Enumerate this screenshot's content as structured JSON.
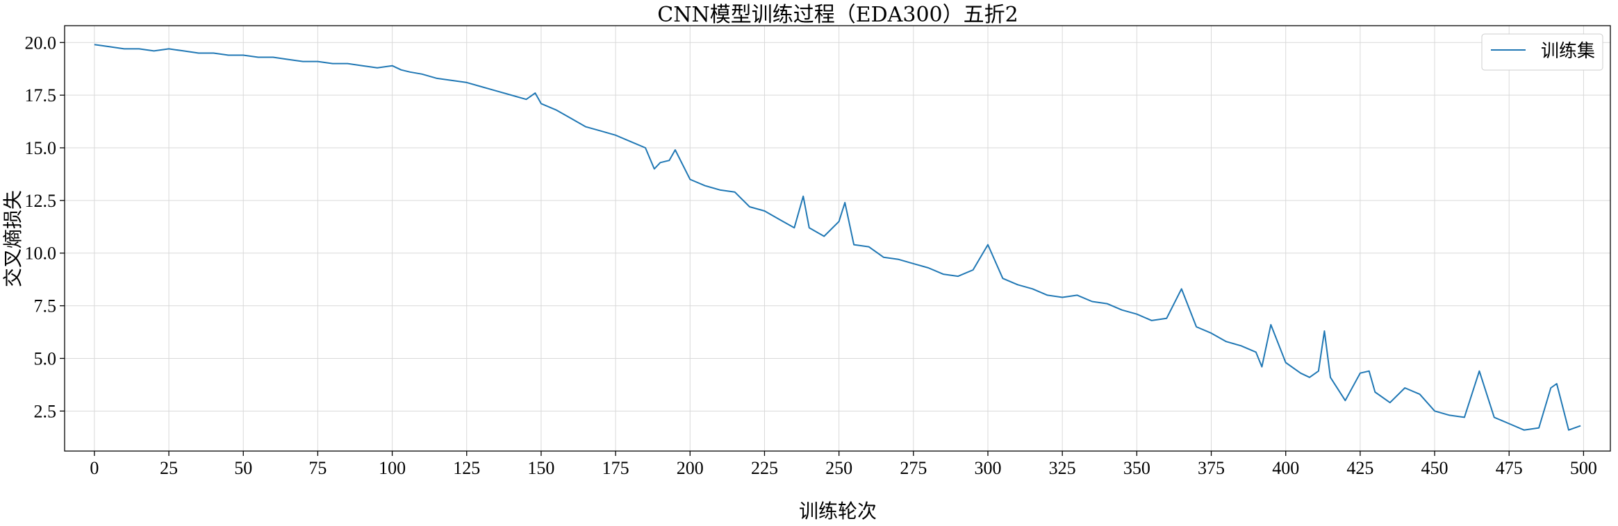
{
  "chart_data": {
    "type": "line",
    "title": "CNN模型训练过程（EDA300）五折2",
    "xlabel": "训练轮次",
    "ylabel": "交叉熵损失",
    "xlim": [
      -10,
      509
    ],
    "ylim": [
      0.6,
      20.8
    ],
    "x_ticks": [
      0,
      25,
      50,
      75,
      100,
      125,
      150,
      175,
      200,
      225,
      250,
      275,
      300,
      325,
      350,
      375,
      400,
      425,
      450,
      475,
      500
    ],
    "y_ticks": [
      2.5,
      5.0,
      7.5,
      10.0,
      12.5,
      15.0,
      17.5,
      20.0
    ],
    "y_tick_labels": [
      "2.5",
      "5.0",
      "7.5",
      "10.0",
      "12.5",
      "15.0",
      "17.5",
      "20.0"
    ],
    "grid": true,
    "legend_position": "top-right",
    "colors": {
      "series": "#1f77b4",
      "grid": "#d9d9d9",
      "axis": "#000000"
    },
    "series": [
      {
        "name": "训练集",
        "x": [
          0,
          5,
          10,
          15,
          20,
          25,
          30,
          35,
          40,
          45,
          50,
          55,
          60,
          65,
          70,
          75,
          80,
          85,
          90,
          95,
          100,
          103,
          106,
          110,
          115,
          120,
          125,
          130,
          135,
          140,
          145,
          148,
          150,
          155,
          160,
          165,
          170,
          175,
          180,
          185,
          188,
          190,
          193,
          195,
          200,
          205,
          210,
          215,
          220,
          225,
          230,
          235,
          238,
          240,
          245,
          250,
          252,
          255,
          260,
          265,
          270,
          275,
          280,
          285,
          290,
          295,
          300,
          305,
          310,
          315,
          320,
          325,
          330,
          335,
          340,
          345,
          350,
          355,
          360,
          365,
          370,
          375,
          380,
          385,
          390,
          392,
          395,
          400,
          405,
          408,
          411,
          413,
          415,
          420,
          425,
          428,
          430,
          435,
          440,
          445,
          450,
          455,
          460,
          465,
          470,
          475,
          480,
          485,
          489,
          491,
          495,
          499
        ],
        "y": [
          19.9,
          19.8,
          19.7,
          19.7,
          19.6,
          19.7,
          19.6,
          19.5,
          19.5,
          19.4,
          19.4,
          19.3,
          19.3,
          19.2,
          19.1,
          19.1,
          19.0,
          19.0,
          18.9,
          18.8,
          18.9,
          18.7,
          18.6,
          18.5,
          18.3,
          18.2,
          18.1,
          17.9,
          17.7,
          17.5,
          17.3,
          17.6,
          17.1,
          16.8,
          16.4,
          16.0,
          15.8,
          15.6,
          15.3,
          15.0,
          14.0,
          14.3,
          14.4,
          14.9,
          13.5,
          13.2,
          13.0,
          12.9,
          12.2,
          12.0,
          11.6,
          11.2,
          12.7,
          11.2,
          10.8,
          11.5,
          12.4,
          10.4,
          10.3,
          9.8,
          9.7,
          9.5,
          9.3,
          9.0,
          8.9,
          9.2,
          10.4,
          8.8,
          8.5,
          8.3,
          8.0,
          7.9,
          8.0,
          7.7,
          7.6,
          7.3,
          7.1,
          6.8,
          6.9,
          8.3,
          6.5,
          6.2,
          5.8,
          5.6,
          5.3,
          4.6,
          6.6,
          4.8,
          4.3,
          4.1,
          4.4,
          6.3,
          4.1,
          3.0,
          4.3,
          4.4,
          3.4,
          2.9,
          3.6,
          3.3,
          2.5,
          2.3,
          2.2,
          4.4,
          2.2,
          1.9,
          1.6,
          1.7,
          3.6,
          3.8,
          1.6,
          1.8
        ]
      }
    ]
  }
}
